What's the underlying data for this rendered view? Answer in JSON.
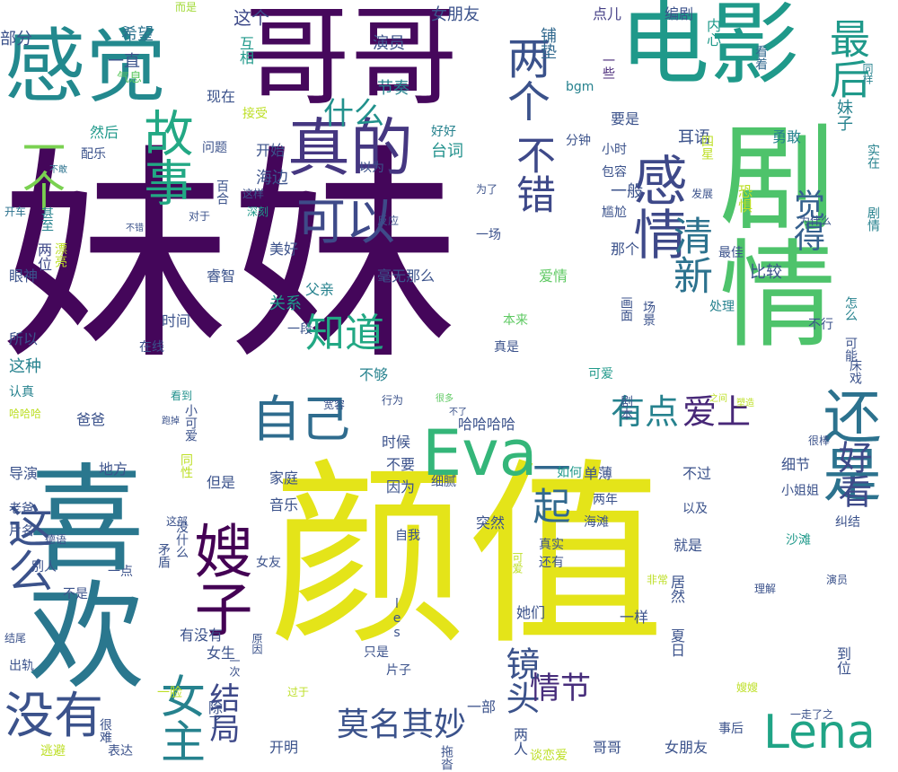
{
  "image": {
    "type": "word-cloud",
    "background": "#ffffff",
    "palette": [
      "#44015a",
      "#3b528b",
      "#21918c",
      "#5ec962",
      "#fde725"
    ]
  },
  "words": [
    {
      "text": "妹妹",
      "color": "#44065a"
    },
    {
      "text": "颜值",
      "color": "#e4e419"
    },
    {
      "text": "哥哥",
      "color": "#46085c"
    },
    {
      "text": "剧情",
      "color": "#4ec36b"
    },
    {
      "text": "喜欢",
      "color": "#2a778e"
    },
    {
      "text": "电影",
      "color": "#1f998a"
    },
    {
      "text": "感觉",
      "color": "#23898e"
    },
    {
      "text": "真的",
      "color": "#453781"
    },
    {
      "text": "Eva",
      "color": "#34b679"
    },
    {
      "text": "Lena",
      "color": "#20a486"
    },
    {
      "text": "自己",
      "color": "#2f6c8e"
    },
    {
      "text": "嫂子",
      "color": "#440154"
    },
    {
      "text": "还是",
      "color": "#2c728e"
    },
    {
      "text": "没有",
      "color": "#3b528b"
    },
    {
      "text": "故事",
      "color": "#22a884"
    },
    {
      "text": "可以",
      "color": "#3e4a89"
    },
    {
      "text": "感情",
      "color": "#3e4989"
    },
    {
      "text": "这么",
      "color": "#3b528b"
    },
    {
      "text": "一个",
      "color": "#7ad151"
    },
    {
      "text": "两个",
      "color": "#3b528b"
    },
    {
      "text": "最后",
      "color": "#1f998a"
    },
    {
      "text": "知道",
      "color": "#22a884"
    },
    {
      "text": "不错",
      "color": "#3e4989"
    },
    {
      "text": "清新",
      "color": "#2c728e"
    },
    {
      "text": "女主",
      "color": "#26828e"
    },
    {
      "text": "莫名其妙",
      "color": "#3b528b"
    },
    {
      "text": "一起",
      "color": "#31688e"
    },
    {
      "text": "有点",
      "color": "#26828e"
    },
    {
      "text": "爱上",
      "color": "#482878"
    },
    {
      "text": "好看",
      "color": "#3e4a89"
    },
    {
      "text": "觉得",
      "color": "#35608d"
    },
    {
      "text": "镜头",
      "color": "#3b528b"
    },
    {
      "text": "情节",
      "color": "#472d7b"
    },
    {
      "text": "什么",
      "color": "#21918c"
    },
    {
      "text": "结局",
      "color": "#3e4989"
    },
    {
      "text": "部分",
      "color": "#3b528b"
    },
    {
      "text": "希望",
      "color": "#2c728e"
    },
    {
      "text": "而是",
      "color": "#a2da37"
    },
    {
      "text": "女朋友",
      "color": "#3b528b"
    },
    {
      "text": "这个",
      "color": "#3e4a89"
    },
    {
      "text": "点儿",
      "color": "#433e85"
    },
    {
      "text": "编剧",
      "color": "#3b528b"
    },
    {
      "text": "内心",
      "color": "#1f998a"
    },
    {
      "text": "看着",
      "color": "#31688e"
    },
    {
      "text": "同样",
      "color": "#26828e"
    },
    {
      "text": "一直",
      "color": "#3b528b"
    },
    {
      "text": "演员",
      "color": "#3b528b"
    },
    {
      "text": "铺垫",
      "color": "#31688e"
    },
    {
      "text": "互相",
      "color": "#1f998a"
    },
    {
      "text": "一些",
      "color": "#482878"
    },
    {
      "text": "气息",
      "color": "#5ec962"
    },
    {
      "text": "现在",
      "color": "#3b528b"
    },
    {
      "text": "节奏",
      "color": "#26828e"
    },
    {
      "text": "bgm",
      "color": "#26828e"
    },
    {
      "text": "接受",
      "color": "#bddf26"
    },
    {
      "text": "好好",
      "color": "#26828e"
    },
    {
      "text": "要是",
      "color": "#3b528b"
    },
    {
      "text": "耳语",
      "color": "#3b528b"
    },
    {
      "text": "勇敢",
      "color": "#26828e"
    },
    {
      "text": "妹子",
      "color": "#26828e"
    },
    {
      "text": "四星",
      "color": "#bddf26"
    },
    {
      "text": "然后",
      "color": "#1f998a"
    },
    {
      "text": "配乐",
      "color": "#3b528b"
    },
    {
      "text": "问题",
      "color": "#3b528b"
    },
    {
      "text": "开始",
      "color": "#3b528b"
    },
    {
      "text": "台词",
      "color": "#21918c"
    },
    {
      "text": "分钟",
      "color": "#3b528b"
    },
    {
      "text": "小时",
      "color": "#3b528b"
    },
    {
      "text": "包容",
      "color": "#3b528b"
    },
    {
      "text": "实在",
      "color": "#26828e"
    },
    {
      "text": "不敢",
      "color": "#2c728e"
    },
    {
      "text": "海边",
      "color": "#3b528b"
    },
    {
      "text": "以为",
      "color": "#3b528b"
    },
    {
      "text": "百合",
      "color": "#3b528b"
    },
    {
      "text": "这样",
      "color": "#3b528b"
    },
    {
      "text": "深刻",
      "color": "#1f998a"
    },
    {
      "text": "为了",
      "color": "#3b528b"
    },
    {
      "text": "一般",
      "color": "#3b528b"
    },
    {
      "text": "尴尬",
      "color": "#3b528b"
    },
    {
      "text": "发展",
      "color": "#3b528b"
    },
    {
      "text": "恐惧",
      "color": "#bddf26"
    },
    {
      "text": "剧情",
      "color": "#26828e"
    },
    {
      "text": "开车",
      "color": "#2c728e"
    },
    {
      "text": "甚至",
      "color": "#26828e"
    },
    {
      "text": "对于",
      "color": "#3b528b"
    },
    {
      "text": "不错",
      "color": "#3b528b"
    },
    {
      "text": "反应",
      "color": "#3b528b"
    },
    {
      "text": "一场",
      "color": "#3b528b"
    },
    {
      "text": "为什么",
      "color": "#3b528b"
    },
    {
      "text": "两位",
      "color": "#3e4989"
    },
    {
      "text": "漂亮",
      "color": "#bddf26"
    },
    {
      "text": "美好",
      "color": "#3b528b"
    },
    {
      "text": "毫无那么",
      "color": "#3b528b"
    },
    {
      "text": "那个",
      "color": "#3b528b"
    },
    {
      "text": "最佳",
      "color": "#3b528b"
    },
    {
      "text": "眼神",
      "color": "#3b528b"
    },
    {
      "text": "睿智",
      "color": "#3b528b"
    },
    {
      "text": "爱情",
      "color": "#5ec962"
    },
    {
      "text": "比较",
      "color": "#3b528b"
    },
    {
      "text": "关系",
      "color": "#1f998a"
    },
    {
      "text": "父亲",
      "color": "#26828e"
    },
    {
      "text": "画面",
      "color": "#3b528b"
    },
    {
      "text": "场景",
      "color": "#3b528b"
    },
    {
      "text": "处理",
      "color": "#26828e"
    },
    {
      "text": "怎么",
      "color": "#26828e"
    },
    {
      "text": "所以",
      "color": "#3b528b"
    },
    {
      "text": "时间",
      "color": "#3b528b"
    },
    {
      "text": "一段",
      "color": "#3b528b"
    },
    {
      "text": "本来",
      "color": "#5ec962"
    },
    {
      "text": "不行",
      "color": "#3b528b"
    },
    {
      "text": "可能",
      "color": "#3b528b"
    },
    {
      "text": "这种",
      "color": "#26828e"
    },
    {
      "text": "在线",
      "color": "#3b528b"
    },
    {
      "text": "真是",
      "color": "#3b528b"
    },
    {
      "text": "床戏",
      "color": "#3b528b"
    },
    {
      "text": "不够",
      "color": "#26828e"
    },
    {
      "text": "可爱",
      "color": "#1f998a"
    },
    {
      "text": "认真",
      "color": "#26828e"
    },
    {
      "text": "行为",
      "color": "#3b528b"
    },
    {
      "text": "很多",
      "color": "#5ec962"
    },
    {
      "text": "剧本",
      "color": "#3b528b"
    },
    {
      "text": "之间",
      "color": "#bddf26"
    },
    {
      "text": "塑造",
      "color": "#bddf26"
    },
    {
      "text": "哈哈哈",
      "color": "#bddf26"
    },
    {
      "text": "看到",
      "color": "#21918c"
    },
    {
      "text": "宽容",
      "color": "#3b528b"
    },
    {
      "text": "不了",
      "color": "#3b528b"
    },
    {
      "text": "哈哈哈哈",
      "color": "#3b528b"
    },
    {
      "text": "跑掉",
      "color": "#3b528b"
    },
    {
      "text": "小可爱",
      "color": "#3b528b"
    },
    {
      "text": "爸爸",
      "color": "#3b528b"
    },
    {
      "text": "时候",
      "color": "#3b528b"
    },
    {
      "text": "很棒",
      "color": "#3b528b"
    },
    {
      "text": "导演",
      "color": "#3b528b"
    },
    {
      "text": "地方",
      "color": "#3b528b"
    },
    {
      "text": "不要",
      "color": "#3b528b"
    },
    {
      "text": "细节",
      "color": "#3b528b"
    },
    {
      "text": "家庭",
      "color": "#3b528b"
    },
    {
      "text": "因为",
      "color": "#3b528b"
    },
    {
      "text": "如何",
      "color": "#1f998a"
    },
    {
      "text": "单薄",
      "color": "#3b528b"
    },
    {
      "text": "不过",
      "color": "#3b528b"
    },
    {
      "text": "小姐姐",
      "color": "#3b528b"
    },
    {
      "text": "老爸",
      "color": "#3b528b"
    },
    {
      "text": "但是",
      "color": "#3b528b"
    },
    {
      "text": "同性",
      "color": "#bddf26"
    },
    {
      "text": "细腻",
      "color": "#3b528b"
    },
    {
      "text": "音乐",
      "color": "#3b528b"
    },
    {
      "text": "两年",
      "color": "#3b528b"
    },
    {
      "text": "片名",
      "color": "#3b528b"
    },
    {
      "text": "这部",
      "color": "#3b528b"
    },
    {
      "text": "突然",
      "color": "#3b528b"
    },
    {
      "text": "海滩",
      "color": "#3b528b"
    },
    {
      "text": "以及",
      "color": "#3b528b"
    },
    {
      "text": "纠结",
      "color": "#3b528b"
    },
    {
      "text": "德语",
      "color": "#3b528b"
    },
    {
      "text": "矛盾",
      "color": "#3b528b"
    },
    {
      "text": "没什么",
      "color": "#3b528b"
    },
    {
      "text": "自我",
      "color": "#3b528b"
    },
    {
      "text": "真实",
      "color": "#3b528b"
    },
    {
      "text": "就是",
      "color": "#3b528b"
    },
    {
      "text": "沙滩",
      "color": "#1f998a"
    },
    {
      "text": "别人",
      "color": "#3b528b"
    },
    {
      "text": "一点",
      "color": "#3b528b"
    },
    {
      "text": "女友",
      "color": "#3b528b"
    },
    {
      "text": "可爱",
      "color": "#bddf26"
    },
    {
      "text": "还有",
      "color": "#3b528b"
    },
    {
      "text": "不是",
      "color": "#3b528b"
    },
    {
      "text": "非常",
      "color": "#bddf26"
    },
    {
      "text": "理解",
      "color": "#3b528b"
    },
    {
      "text": "les",
      "color": "#3b528b"
    },
    {
      "text": "居然",
      "color": "#3b528b"
    },
    {
      "text": "演员",
      "color": "#3b528b"
    },
    {
      "text": "有没有",
      "color": "#3b528b"
    },
    {
      "text": "她们",
      "color": "#3b528b"
    },
    {
      "text": "一样",
      "color": "#3b528b"
    },
    {
      "text": "结尾",
      "color": "#3b528b"
    },
    {
      "text": "女生",
      "color": "#3b528b"
    },
    {
      "text": "出轨",
      "color": "#3b528b"
    },
    {
      "text": "原因",
      "color": "#3b528b"
    },
    {
      "text": "只是",
      "color": "#3b528b"
    },
    {
      "text": "片子",
      "color": "#3b528b"
    },
    {
      "text": "夏日",
      "color": "#3b528b"
    },
    {
      "text": "到位",
      "color": "#3b528b"
    },
    {
      "text": "一脸",
      "color": "#bddf26"
    },
    {
      "text": "一次",
      "color": "#3b528b"
    },
    {
      "text": "过于",
      "color": "#bddf26"
    },
    {
      "text": "嫂嫂",
      "color": "#bddf26"
    },
    {
      "text": "一部",
      "color": "#3b528b"
    },
    {
      "text": "除了",
      "color": "#3b528b"
    },
    {
      "text": "事后",
      "color": "#3b528b"
    },
    {
      "text": "一走了之",
      "color": "#3b528b"
    },
    {
      "text": "很难",
      "color": "#3b528b"
    },
    {
      "text": "开明",
      "color": "#3b528b"
    },
    {
      "text": "两人",
      "color": "#3b528b"
    },
    {
      "text": "哥哥",
      "color": "#3b528b"
    },
    {
      "text": "女朋友",
      "color": "#3b528b"
    },
    {
      "text": "拖沓",
      "color": "#3b528b"
    },
    {
      "text": "逃避",
      "color": "#bddf26"
    },
    {
      "text": "表达",
      "color": "#3b528b"
    },
    {
      "text": "谈恋爱",
      "color": "#bddf26"
    }
  ]
}
